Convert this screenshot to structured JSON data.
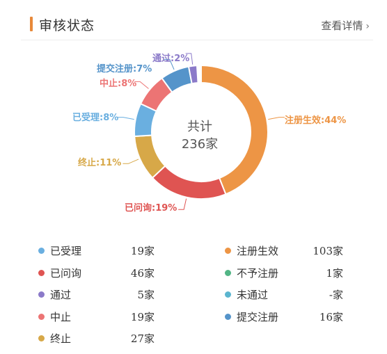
{
  "header": {
    "title": "审核状态",
    "detail_link": "查看详情",
    "accent_color": "#e8893a"
  },
  "chart_data": {
    "type": "pie",
    "style": "donut",
    "center_text": [
      "共计",
      "236家"
    ],
    "slices": [
      {
        "name": "注册生效",
        "percent": 44,
        "label": "注册生效:44%",
        "color": "#ed9545"
      },
      {
        "name": "已问询",
        "percent": 19,
        "label": "已问询:19%",
        "color": "#df5452"
      },
      {
        "name": "终止",
        "percent": 11,
        "label": "终止:11%",
        "color": "#d7a848"
      },
      {
        "name": "已受理",
        "percent": 8,
        "label": "已受理:8%",
        "color": "#6aafe0"
      },
      {
        "name": "中止",
        "percent": 8,
        "label": "中止:8%",
        "color": "#ec7474"
      },
      {
        "name": "提交注册",
        "percent": 7,
        "label": "提交注册:7%",
        "color": "#5594ca"
      },
      {
        "name": "通过",
        "percent": 2,
        "label": "通过:2%",
        "color": "#8b7ac9"
      }
    ]
  },
  "legend": {
    "left": [
      {
        "label": "已受理",
        "count": "19家",
        "color": "#6aafe0"
      },
      {
        "label": "已问询",
        "count": "46家",
        "color": "#df5452"
      },
      {
        "label": "通过",
        "count": "5家",
        "color": "#8b7ac9"
      },
      {
        "label": "中止",
        "count": "19家",
        "color": "#ec7474"
      },
      {
        "label": "终止",
        "count": "27家",
        "color": "#d7a848"
      }
    ],
    "right": [
      {
        "label": "注册生效",
        "count": "103家",
        "color": "#ed9545"
      },
      {
        "label": "不予注册",
        "count": "1家",
        "color": "#52b585"
      },
      {
        "label": "未通过",
        "count": "-家",
        "color": "#5bb5cf"
      },
      {
        "label": "提交注册",
        "count": "16家",
        "color": "#5594ca"
      }
    ]
  }
}
